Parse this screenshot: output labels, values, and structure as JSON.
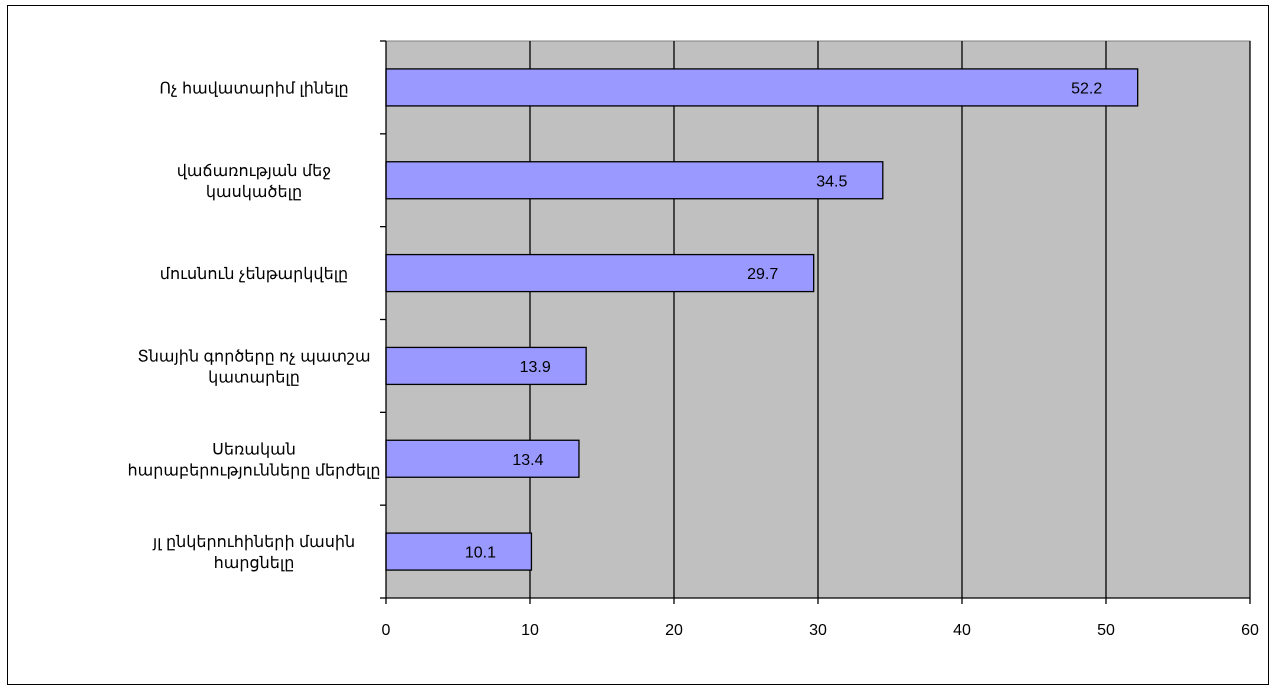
{
  "chart_data": {
    "type": "bar",
    "orientation": "horizontal",
    "categories": [
      [
        "Ոչ հավատարիմ լինելը"
      ],
      [
        "վաճառության մեջ",
        "կասկածելը"
      ],
      [
        "մուսնուն չենթարկվելը"
      ],
      [
        "Տնային գործերը ոչ պատշա",
        "կատարելը"
      ],
      [
        "Սեռական",
        "հարաբերությունները մերժելը"
      ],
      [
        "յլ ընկերուհիների մասին",
        "հարցնելը"
      ]
    ],
    "values": [
      52.2,
      34.5,
      29.7,
      13.9,
      13.4,
      10.1
    ],
    "data_labels": [
      "52.2",
      "34.5",
      "29.7",
      "13.9",
      "13.4",
      "10.1"
    ],
    "x_ticks": [
      "0",
      "10",
      "20",
      "30",
      "40",
      "50",
      "60"
    ],
    "xlim": [
      0,
      60
    ],
    "grid": "vertical",
    "title": "",
    "xlabel": "",
    "ylabel": "",
    "colors": {
      "bar_fill": "#9999ff",
      "bar_stroke": "#000000",
      "plot_bg": "#c0c0c0",
      "grid": "#000000"
    }
  }
}
